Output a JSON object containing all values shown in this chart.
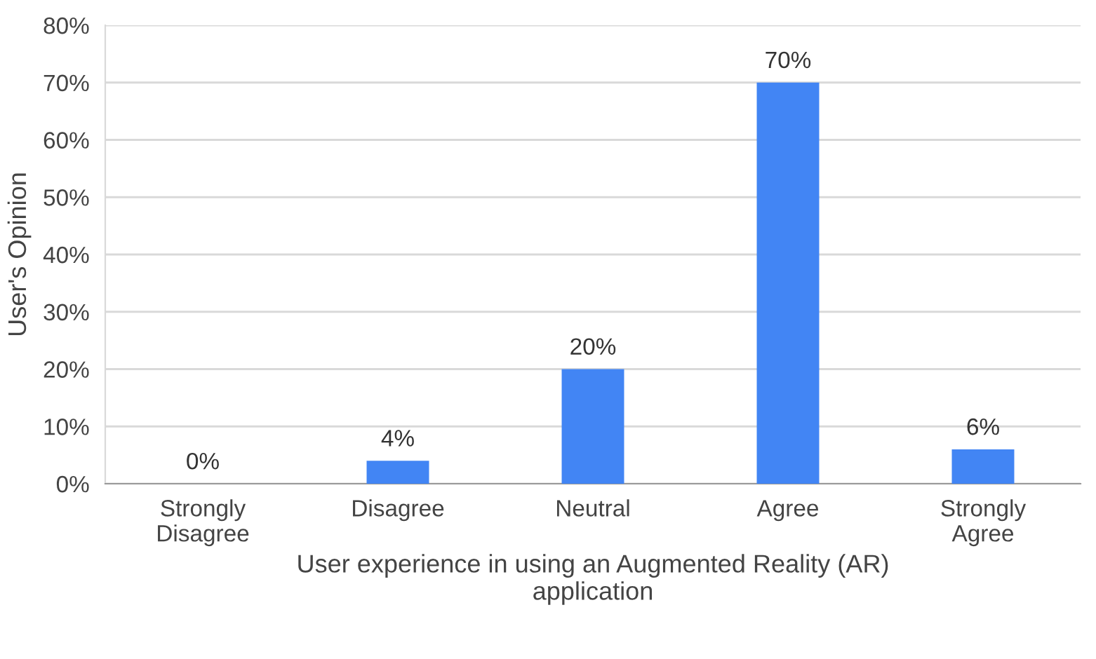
{
  "chart_data": {
    "type": "bar",
    "categories": [
      "Strongly\nDisagree",
      "Disagree",
      "Neutral",
      "Agree",
      "Strongly\nAgree"
    ],
    "values": [
      0,
      4,
      20,
      70,
      6
    ],
    "value_labels": [
      "0%",
      "4%",
      "20%",
      "70%",
      "6%"
    ],
    "color": "#4285f4",
    "xlabel": "User experience in using an Augmented Reality (AR)\napplication",
    "ylabel": "User's Opinion",
    "ylim": [
      0,
      80
    ],
    "yticks": [
      {
        "value": 0,
        "label": "0%"
      },
      {
        "value": 10,
        "label": "10%"
      },
      {
        "value": 20,
        "label": "20%"
      },
      {
        "value": 30,
        "label": "30%"
      },
      {
        "value": 40,
        "label": "40%"
      },
      {
        "value": 50,
        "label": "50%"
      },
      {
        "value": 60,
        "label": "60%"
      },
      {
        "value": 70,
        "label": "70%"
      },
      {
        "value": 80,
        "label": "80%"
      }
    ],
    "grid": "y",
    "legend": false
  }
}
